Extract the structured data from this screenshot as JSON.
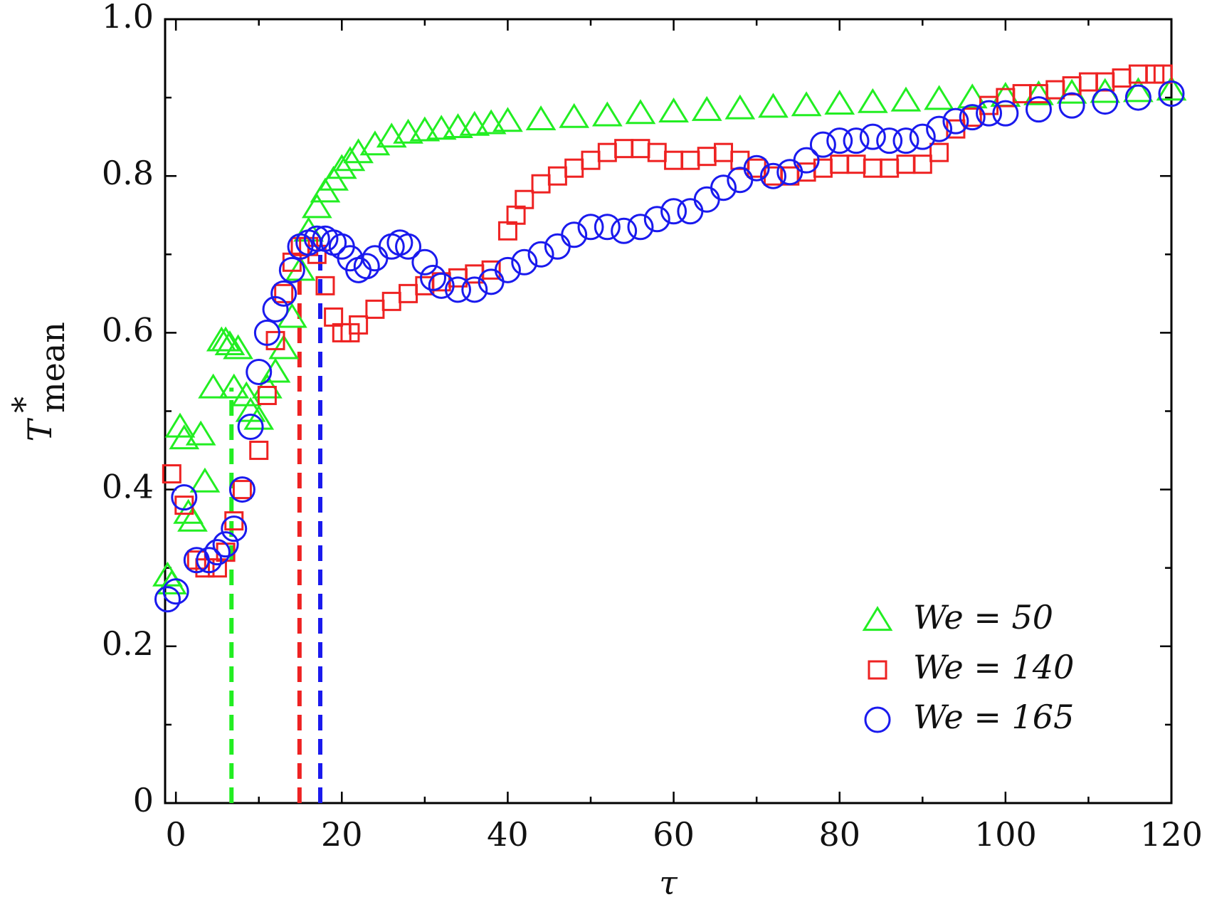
{
  "chart_data": {
    "type": "scatter",
    "x_label": "τ",
    "y_label": {
      "text": "T",
      "sup": "*",
      "sub": "mean"
    },
    "xlim": [
      -1.3,
      120
    ],
    "ylim": [
      0,
      1
    ],
    "xticks": [
      0,
      20,
      40,
      60,
      80,
      100,
      120
    ],
    "xminorticks": [
      10,
      30,
      50,
      70,
      90,
      110
    ],
    "yticks": [
      0,
      0.2,
      0.4,
      0.6,
      0.8,
      {
        "value": 1,
        "label": "1.0"
      }
    ],
    "yminorticks": [
      0.1,
      0.3,
      0.5,
      0.7,
      0.9
    ],
    "legend": "lower right",
    "series": [
      {
        "name": "We = 50",
        "color": "#22ee22",
        "marker": "triangle",
        "x": [
          -1,
          -0.5,
          0.5,
          1,
          1.5,
          2,
          3,
          3.5,
          4.5,
          5.5,
          6,
          6.5,
          7,
          7.5,
          8.5,
          9,
          10,
          11,
          12,
          13,
          14,
          15,
          16,
          17,
          18,
          19,
          20,
          21,
          22,
          24,
          26,
          28,
          30,
          32,
          34,
          36,
          38,
          40,
          44,
          48,
          52,
          56,
          60,
          64,
          68,
          72,
          76,
          80,
          84,
          88,
          92,
          96,
          100,
          104,
          108,
          112,
          116,
          120
        ],
        "values": [
          0.29,
          0.28,
          0.48,
          0.465,
          0.37,
          0.36,
          0.47,
          0.41,
          0.53,
          0.59,
          0.59,
          0.585,
          0.53,
          0.58,
          0.52,
          0.5,
          0.49,
          0.53,
          0.55,
          0.58,
          0.62,
          0.68,
          0.73,
          0.76,
          0.78,
          0.795,
          0.81,
          0.82,
          0.83,
          0.84,
          0.85,
          0.855,
          0.858,
          0.86,
          0.862,
          0.865,
          0.867,
          0.87,
          0.872,
          0.875,
          0.877,
          0.88,
          0.882,
          0.884,
          0.886,
          0.888,
          0.89,
          0.892,
          0.894,
          0.896,
          0.898,
          0.9,
          0.902,
          0.904,
          0.906,
          0.907,
          0.908,
          0.91
        ]
      },
      {
        "name": "We = 140",
        "color": "#ee2222",
        "marker": "square",
        "x": [
          -0.5,
          1,
          2.5,
          3.5,
          5,
          6,
          7,
          8,
          10,
          11,
          12,
          13,
          14,
          15,
          16,
          17,
          18,
          19,
          20,
          21,
          22,
          24,
          26,
          28,
          30,
          32,
          34,
          36,
          38,
          40,
          41,
          42,
          44,
          46,
          48,
          50,
          52,
          54,
          56,
          58,
          60,
          62,
          64,
          66,
          68,
          70,
          72,
          74,
          76,
          78,
          80,
          82,
          84,
          86,
          88,
          90,
          92,
          94,
          96,
          98,
          100,
          102,
          104,
          106,
          108,
          110,
          112,
          114,
          116,
          118,
          119
        ],
        "values": [
          0.42,
          0.38,
          0.31,
          0.3,
          0.3,
          0.32,
          0.36,
          0.4,
          0.45,
          0.52,
          0.59,
          0.65,
          0.69,
          0.71,
          0.71,
          0.7,
          0.66,
          0.62,
          0.6,
          0.6,
          0.61,
          0.63,
          0.64,
          0.65,
          0.66,
          0.665,
          0.67,
          0.675,
          0.68,
          0.73,
          0.75,
          0.77,
          0.79,
          0.8,
          0.81,
          0.82,
          0.83,
          0.835,
          0.835,
          0.83,
          0.82,
          0.82,
          0.825,
          0.83,
          0.82,
          0.81,
          0.8,
          0.8,
          0.805,
          0.81,
          0.815,
          0.815,
          0.81,
          0.81,
          0.815,
          0.815,
          0.83,
          0.86,
          0.875,
          0.89,
          0.9,
          0.905,
          0.905,
          0.91,
          0.915,
          0.92,
          0.92,
          0.925,
          0.93,
          0.93,
          0.93
        ]
      },
      {
        "name": "We = 165",
        "color": "#1a1aee",
        "marker": "circle",
        "x": [
          -1,
          0,
          1,
          2.5,
          4,
          5,
          6,
          7,
          8,
          9,
          10,
          11,
          12,
          13,
          14,
          15,
          16,
          17,
          18,
          19,
          20,
          21,
          22,
          23,
          24,
          26,
          27,
          28,
          30,
          31,
          32,
          34,
          36,
          38,
          40,
          42,
          44,
          46,
          48,
          50,
          52,
          54,
          56,
          58,
          60,
          62,
          64,
          66,
          68,
          70,
          72,
          74,
          76,
          78,
          80,
          82,
          84,
          86,
          88,
          90,
          92,
          94,
          96,
          98,
          100,
          104,
          108,
          112,
          116,
          120
        ],
        "values": [
          0.26,
          0.27,
          0.39,
          0.31,
          0.31,
          0.32,
          0.33,
          0.35,
          0.4,
          0.48,
          0.55,
          0.6,
          0.63,
          0.65,
          0.68,
          0.71,
          0.715,
          0.72,
          0.72,
          0.715,
          0.71,
          0.695,
          0.68,
          0.685,
          0.695,
          0.71,
          0.715,
          0.71,
          0.69,
          0.67,
          0.66,
          0.655,
          0.655,
          0.665,
          0.68,
          0.69,
          0.7,
          0.71,
          0.725,
          0.735,
          0.735,
          0.73,
          0.735,
          0.745,
          0.755,
          0.755,
          0.77,
          0.785,
          0.795,
          0.81,
          0.8,
          0.805,
          0.82,
          0.84,
          0.845,
          0.845,
          0.85,
          0.845,
          0.845,
          0.85,
          0.86,
          0.87,
          0.875,
          0.88,
          0.88,
          0.885,
          0.89,
          0.895,
          0.9,
          0.905
        ]
      }
    ],
    "reference_lines": [
      {
        "x": 6.7,
        "y": 0.53,
        "color": "#22ee22"
      },
      {
        "x": 14.9,
        "y": 0.68,
        "color": "#ee2222"
      },
      {
        "x": 17.4,
        "y": 0.7,
        "color": "#1a1aee"
      }
    ]
  }
}
